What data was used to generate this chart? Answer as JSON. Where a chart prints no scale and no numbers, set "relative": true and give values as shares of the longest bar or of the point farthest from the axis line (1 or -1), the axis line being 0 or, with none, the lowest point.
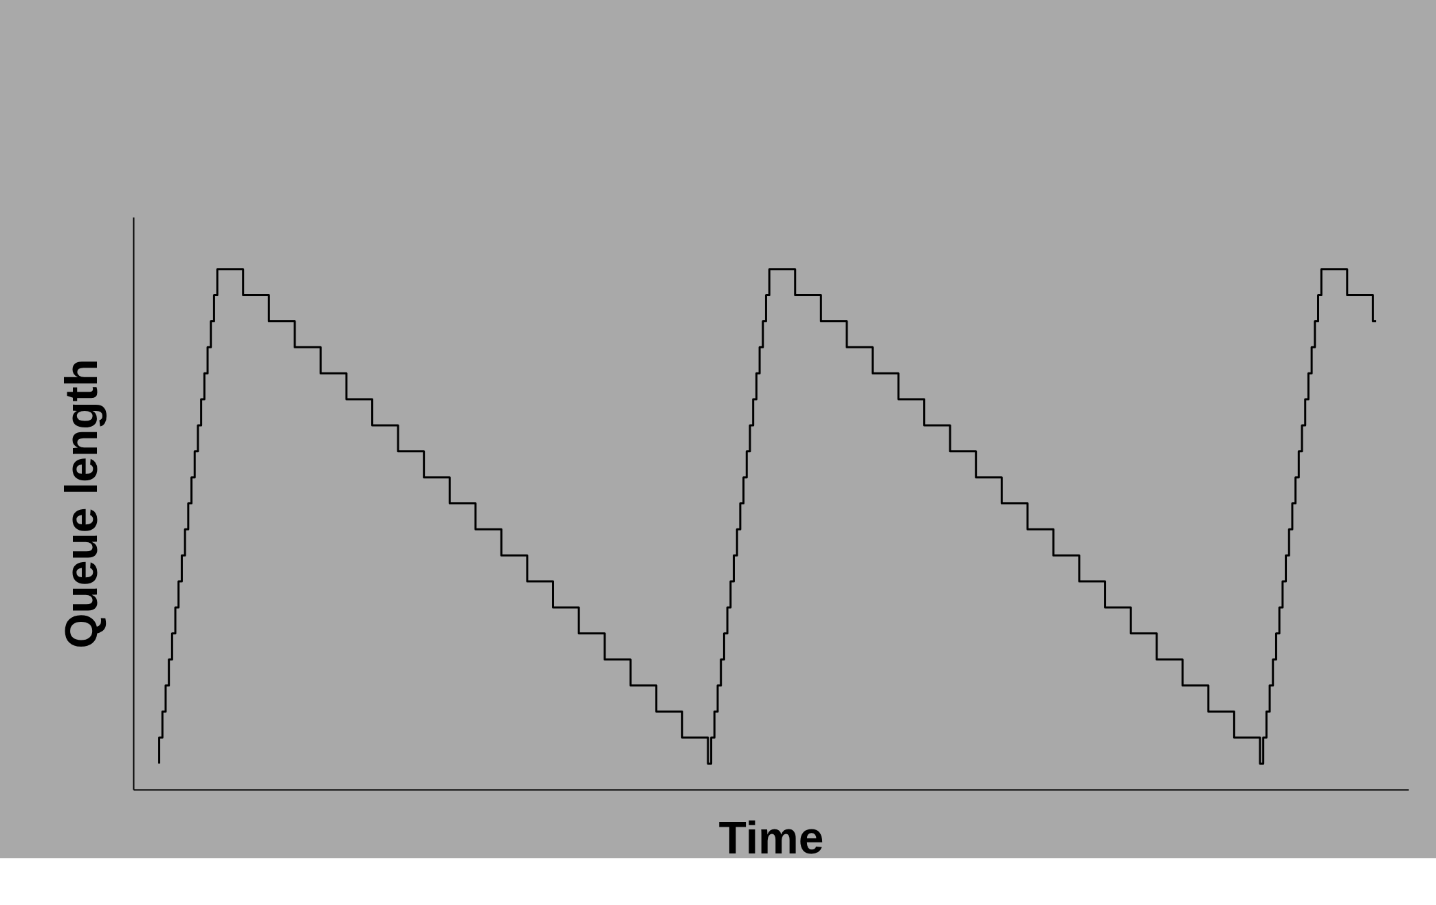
{
  "chart_data": {
    "type": "step",
    "relative": true,
    "tick_labels": false,
    "xlabel": "Time",
    "ylabel": "Queue length",
    "categories": [
      null,
      null,
      null,
      null,
      null,
      null,
      null,
      null,
      null,
      null,
      null,
      null,
      null,
      null,
      null,
      null,
      null,
      null,
      null,
      null,
      null,
      null,
      null,
      null,
      null,
      null,
      null,
      null,
      null,
      null,
      null,
      null,
      null,
      null,
      null,
      null,
      null,
      null,
      null,
      null,
      null,
      null,
      null,
      null,
      null,
      null,
      null,
      null,
      null,
      null,
      null,
      null,
      null,
      null,
      null,
      null,
      null,
      null,
      null,
      null,
      null,
      null,
      null,
      null,
      null,
      null,
      null,
      null,
      null,
      null,
      null,
      null,
      null,
      null,
      null,
      null,
      null,
      null,
      null,
      null,
      null,
      null,
      null,
      null,
      null,
      null,
      null,
      null,
      null,
      null,
      null,
      null,
      null,
      null,
      null,
      null,
      null,
      null,
      null,
      null,
      null,
      null,
      null,
      null,
      null,
      null,
      null,
      null,
      null,
      null,
      null,
      null,
      null,
      null,
      null,
      null,
      null,
      null,
      null,
      null,
      null,
      null,
      null,
      null,
      null,
      null,
      null,
      null,
      null,
      null,
      null,
      null,
      null,
      null,
      null,
      null,
      null,
      null,
      null,
      null,
      null,
      null,
      null,
      null,
      null,
      null,
      null,
      null,
      null,
      null,
      null,
      null,
      null,
      null,
      null,
      null,
      null,
      null,
      null,
      null,
      null,
      null,
      null,
      null,
      null,
      null,
      null,
      null,
      null,
      null,
      null,
      null,
      null,
      null,
      null,
      null,
      null,
      null,
      null,
      null,
      null,
      null,
      null,
      null,
      null,
      null,
      null,
      null,
      null,
      null,
      null,
      null,
      null,
      null,
      null,
      null,
      null,
      null,
      null,
      null,
      null,
      null,
      null,
      null,
      null,
      null,
      null,
      null,
      null,
      null,
      null,
      null,
      null,
      null,
      null,
      null,
      null,
      null,
      null,
      null,
      null,
      null,
      null,
      null,
      null,
      null,
      null,
      null,
      null,
      null,
      null,
      null,
      null,
      null,
      null,
      null,
      null,
      null,
      null,
      null,
      null,
      null,
      null,
      null,
      null,
      null,
      null,
      null,
      null,
      null,
      null,
      null,
      null,
      null,
      null,
      null,
      null,
      null,
      null,
      null,
      null,
      null,
      null,
      null,
      null,
      null,
      null,
      null,
      null,
      null,
      null,
      null,
      null,
      null,
      null,
      null,
      null,
      null,
      null,
      null,
      null,
      null,
      null,
      null,
      null,
      null,
      null,
      null,
      null,
      null,
      null,
      null,
      null,
      null,
      null,
      null,
      null,
      null,
      null,
      null,
      null,
      null,
      null,
      null,
      null,
      null,
      null,
      null,
      null,
      null,
      null,
      null,
      null,
      null,
      null,
      null,
      null,
      null,
      null,
      null,
      null,
      null,
      null,
      null,
      null,
      null,
      null,
      null,
      null,
      null,
      null,
      null,
      null,
      null,
      null,
      null,
      null,
      null,
      null,
      null,
      null,
      null,
      null,
      null,
      null,
      null,
      null,
      null,
      null,
      null,
      null,
      null,
      null,
      null,
      null,
      null,
      null,
      null,
      null,
      null,
      null,
      null,
      null,
      null,
      null,
      null,
      null,
      null,
      null,
      null,
      null,
      null,
      null,
      null,
      null,
      null,
      null,
      null,
      null,
      null,
      null,
      null,
      null,
      null,
      null,
      null,
      null,
      null,
      null,
      null,
      null,
      null,
      null,
      null,
      null,
      null
    ],
    "series": [
      {
        "color": "#000000",
        "values": [
          null,
          null,
          null,
          null,
          null,
          null,
          null,
          null,
          0.05,
          0.1,
          0.15,
          0.2,
          0.25,
          0.3,
          0.35,
          0.4,
          0.45,
          0.5,
          0.55,
          0.6,
          0.65,
          0.7,
          0.75,
          0.8,
          0.85,
          0.9,
          0.95,
          1,
          1,
          1,
          1,
          1,
          1,
          1,
          1,
          0.95,
          0.95,
          0.95,
          0.95,
          0.95,
          0.95,
          0.95,
          0.95,
          0.9,
          0.9,
          0.9,
          0.9,
          0.9,
          0.9,
          0.9,
          0.9,
          0.85,
          0.85,
          0.85,
          0.85,
          0.85,
          0.85,
          0.85,
          0.85,
          0.8,
          0.8,
          0.8,
          0.8,
          0.8,
          0.8,
          0.8,
          0.8,
          0.75,
          0.75,
          0.75,
          0.75,
          0.75,
          0.75,
          0.75,
          0.75,
          0.7,
          0.7,
          0.7,
          0.7,
          0.7,
          0.7,
          0.7,
          0.7,
          0.65,
          0.65,
          0.65,
          0.65,
          0.65,
          0.65,
          0.65,
          0.65,
          0.6,
          0.6,
          0.6,
          0.6,
          0.6,
          0.6,
          0.6,
          0.6,
          0.55,
          0.55,
          0.55,
          0.55,
          0.55,
          0.55,
          0.55,
          0.55,
          0.5,
          0.5,
          0.5,
          0.5,
          0.5,
          0.5,
          0.5,
          0.5,
          0.45,
          0.45,
          0.45,
          0.45,
          0.45,
          0.45,
          0.45,
          0.45,
          0.4,
          0.4,
          0.4,
          0.4,
          0.4,
          0.4,
          0.4,
          0.4,
          0.35,
          0.35,
          0.35,
          0.35,
          0.35,
          0.35,
          0.35,
          0.35,
          0.3,
          0.3,
          0.3,
          0.3,
          0.3,
          0.3,
          0.3,
          0.3,
          0.25,
          0.25,
          0.25,
          0.25,
          0.25,
          0.25,
          0.25,
          0.25,
          0.2,
          0.2,
          0.2,
          0.2,
          0.2,
          0.2,
          0.2,
          0.2,
          0.15,
          0.15,
          0.15,
          0.15,
          0.15,
          0.15,
          0.15,
          0.15,
          0.1,
          0.1,
          0.1,
          0.1,
          0.1,
          0.1,
          0.1,
          0.1,
          0.05,
          0.1,
          0.15,
          0.2,
          0.25,
          0.3,
          0.35,
          0.4,
          0.45,
          0.5,
          0.55,
          0.6,
          0.65,
          0.7,
          0.75,
          0.8,
          0.85,
          0.9,
          0.95,
          1,
          1,
          1,
          1,
          1,
          1,
          1,
          1,
          0.95,
          0.95,
          0.95,
          0.95,
          0.95,
          0.95,
          0.95,
          0.95,
          0.9,
          0.9,
          0.9,
          0.9,
          0.9,
          0.9,
          0.9,
          0.9,
          0.85,
          0.85,
          0.85,
          0.85,
          0.85,
          0.85,
          0.85,
          0.85,
          0.8,
          0.8,
          0.8,
          0.8,
          0.8,
          0.8,
          0.8,
          0.8,
          0.75,
          0.75,
          0.75,
          0.75,
          0.75,
          0.75,
          0.75,
          0.75,
          0.7,
          0.7,
          0.7,
          0.7,
          0.7,
          0.7,
          0.7,
          0.7,
          0.65,
          0.65,
          0.65,
          0.65,
          0.65,
          0.65,
          0.65,
          0.65,
          0.6,
          0.6,
          0.6,
          0.6,
          0.6,
          0.6,
          0.6,
          0.6,
          0.55,
          0.55,
          0.55,
          0.55,
          0.55,
          0.55,
          0.55,
          0.55,
          0.5,
          0.5,
          0.5,
          0.5,
          0.5,
          0.5,
          0.5,
          0.5,
          0.45,
          0.45,
          0.45,
          0.45,
          0.45,
          0.45,
          0.45,
          0.45,
          0.4,
          0.4,
          0.4,
          0.4,
          0.4,
          0.4,
          0.4,
          0.4,
          0.35,
          0.35,
          0.35,
          0.35,
          0.35,
          0.35,
          0.35,
          0.35,
          0.3,
          0.3,
          0.3,
          0.3,
          0.3,
          0.3,
          0.3,
          0.3,
          0.25,
          0.25,
          0.25,
          0.25,
          0.25,
          0.25,
          0.25,
          0.25,
          0.2,
          0.2,
          0.2,
          0.2,
          0.2,
          0.2,
          0.2,
          0.2,
          0.15,
          0.15,
          0.15,
          0.15,
          0.15,
          0.15,
          0.15,
          0.15,
          0.1,
          0.1,
          0.1,
          0.1,
          0.1,
          0.1,
          0.1,
          0.1,
          0.05,
          0.1,
          0.15,
          0.2,
          0.25,
          0.3,
          0.35,
          0.4,
          0.45,
          0.5,
          0.55,
          0.6,
          0.65,
          0.7,
          0.75,
          0.8,
          0.85,
          0.9,
          0.95,
          1,
          1,
          1,
          1,
          1,
          1,
          1,
          1,
          0.95,
          0.95,
          0.95,
          0.95,
          0.95,
          0.95,
          0.95,
          0.95,
          0.9,
          null,
          null,
          null,
          null,
          null,
          null,
          null,
          null,
          null,
          null
        ]
      }
    ]
  }
}
